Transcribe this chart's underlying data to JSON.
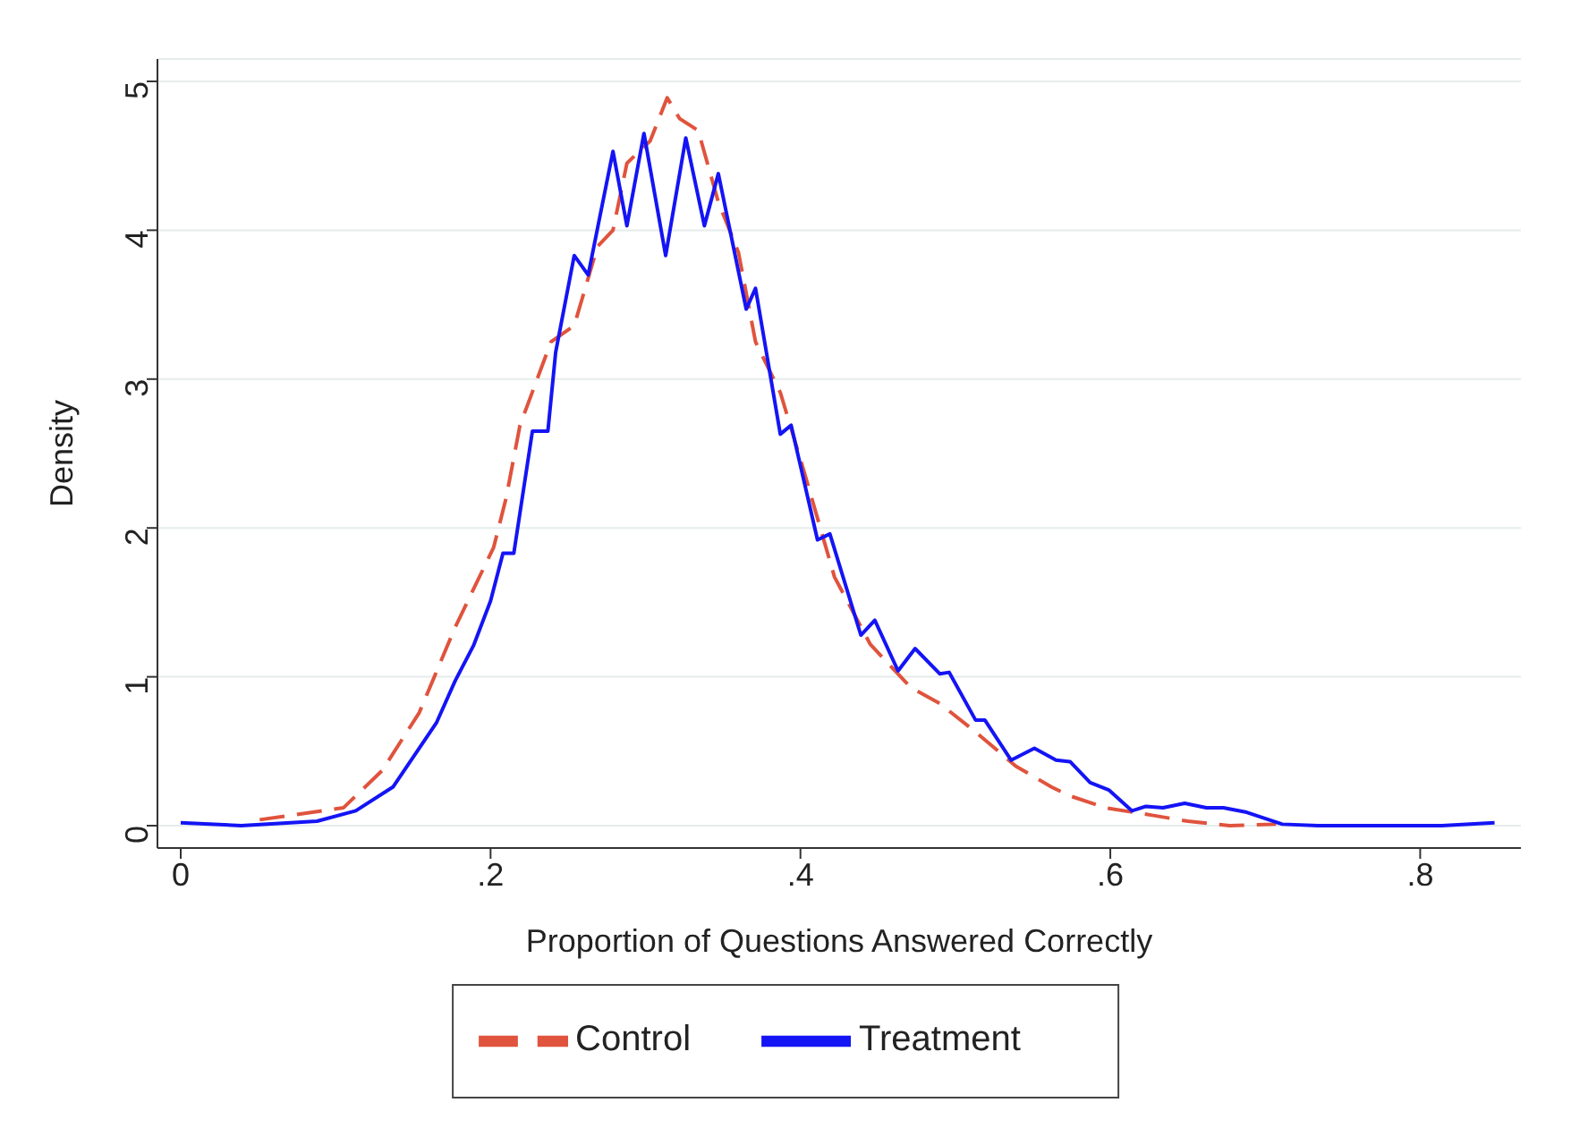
{
  "chart_data": {
    "type": "line",
    "xlabel": "Proportion of Questions Answered Correctly",
    "ylabel": "Density",
    "xlim": [
      -0.015,
      0.865
    ],
    "ylim": [
      -0.15,
      5.15
    ],
    "xticks": [
      {
        "value": 0,
        "label": "0"
      },
      {
        "value": 0.2,
        "label": ".2"
      },
      {
        "value": 0.4,
        "label": ".4"
      },
      {
        "value": 0.6,
        "label": ".6"
      },
      {
        "value": 0.8,
        "label": ".8"
      }
    ],
    "yticks": [
      0,
      1,
      2,
      3,
      4,
      5
    ],
    "grid": "y",
    "legend": "bottom",
    "marker": "none",
    "series": [
      {
        "name": "Control",
        "color": "#e0533d",
        "line_style": "dashed",
        "x": [
          0.051,
          0.105,
          0.13,
          0.154,
          0.177,
          0.202,
          0.21,
          0.219,
          0.239,
          0.254,
          0.269,
          0.279,
          0.288,
          0.303,
          0.314,
          0.322,
          0.334,
          0.347,
          0.36,
          0.371,
          0.387,
          0.402,
          0.422,
          0.445,
          0.471,
          0.49,
          0.513,
          0.539,
          0.562,
          0.574,
          0.597,
          0.627,
          0.65,
          0.677,
          0.707
        ],
        "values": [
          0.04,
          0.12,
          0.37,
          0.76,
          1.33,
          1.87,
          2.2,
          2.69,
          3.25,
          3.36,
          3.89,
          4.0,
          4.45,
          4.6,
          4.89,
          4.75,
          4.67,
          4.19,
          3.85,
          3.25,
          2.91,
          2.39,
          1.67,
          1.22,
          0.93,
          0.82,
          0.63,
          0.4,
          0.26,
          0.2,
          0.12,
          0.07,
          0.03,
          0,
          0.01
        ]
      },
      {
        "name": "Treatment",
        "color": "#1414f5",
        "line_style": "solid",
        "x": [
          0,
          0.039,
          0.088,
          0.113,
          0.137,
          0.165,
          0.177,
          0.189,
          0.2,
          0.208,
          0.215,
          0.227,
          0.237,
          0.242,
          0.254,
          0.263,
          0.279,
          0.288,
          0.299,
          0.313,
          0.326,
          0.338,
          0.347,
          0.365,
          0.371,
          0.387,
          0.394,
          0.411,
          0.419,
          0.439,
          0.448,
          0.463,
          0.474,
          0.49,
          0.496,
          0.513,
          0.519,
          0.536,
          0.551,
          0.565,
          0.574,
          0.587,
          0.599,
          0.614,
          0.623,
          0.634,
          0.648,
          0.662,
          0.673,
          0.688,
          0.711,
          0.734,
          0.814,
          0.848
        ],
        "values": [
          0.02,
          0,
          0.03,
          0.1,
          0.26,
          0.69,
          0.97,
          1.21,
          1.51,
          1.83,
          1.83,
          2.65,
          2.65,
          3.18,
          3.83,
          3.7,
          4.53,
          4.03,
          4.65,
          3.83,
          4.62,
          4.03,
          4.38,
          3.47,
          3.61,
          2.63,
          2.69,
          1.92,
          1.96,
          1.28,
          1.38,
          1.04,
          1.19,
          1.02,
          1.03,
          0.71,
          0.71,
          0.44,
          0.52,
          0.44,
          0.43,
          0.29,
          0.24,
          0.1,
          0.13,
          0.12,
          0.15,
          0.12,
          0.12,
          0.09,
          0.01,
          0,
          0,
          0.02
        ]
      }
    ]
  }
}
